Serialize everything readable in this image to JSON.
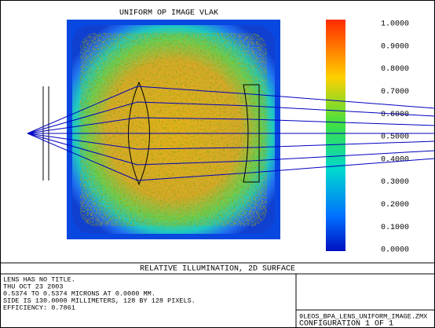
{
  "plot": {
    "title": "UNIFORM OP IMAGE VLAK",
    "colorbar_labels": [
      "1.0000",
      "0.9000",
      "0.8000",
      "0.7000",
      "0.6000",
      "0.5000",
      "0.4000",
      "0.3000",
      "0.2000",
      "0.1000",
      "0.0000"
    ]
  },
  "caption": "RELATIVE ILLUMINATION, 2D SURFACE",
  "info": [
    "LENS HAS NO TITLE.",
    "THU OCT 23 2003",
    "0.5374 TO 0.5374 MICRONS AT 0.0000 MM.",
    "SIDE IS 130.0000 MILLIMETERS, 128 BY 128 PIXELS.",
    "EFFICIENCY: 0.7861"
  ],
  "file": {
    "name": "9LEOS_BPA_LENS_UNIFORM_IMAGE.ZMX",
    "configuration": "CONFIGURATION 1 OF 1"
  }
}
